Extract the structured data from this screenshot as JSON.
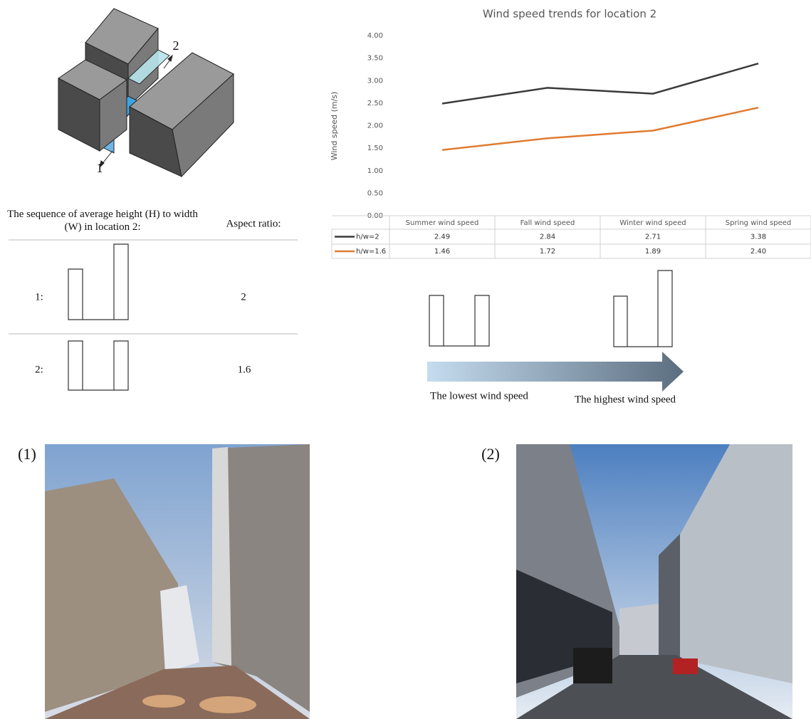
{
  "chart_data": {
    "type": "line",
    "title": "Wind speed trends for location 2",
    "y_label": "Wind speed (m/s)",
    "categories": [
      "Summer wind speed",
      "Fall wind speed",
      "Winter wind speed",
      "Spring wind speed"
    ],
    "series": [
      {
        "name": "h/w=2",
        "color": "#3a3a3a",
        "values": [
          2.49,
          2.84,
          2.71,
          3.38
        ]
      },
      {
        "name": "h/w=1.6",
        "color": "#e07b30",
        "values": [
          1.46,
          1.72,
          1.89,
          2.4
        ],
        "value_labels": [
          "1.46",
          "1.72",
          "1.89",
          "2.40"
        ]
      }
    ],
    "ylim": [
      0,
      4
    ],
    "yticks": [
      {
        "value": 0,
        "label": "0.00"
      },
      {
        "value": 0.5,
        "label": "0.50"
      },
      {
        "value": 1,
        "label": "1.00"
      },
      {
        "value": 1.5,
        "label": "1.50"
      },
      {
        "value": 2,
        "label": "2.00"
      },
      {
        "value": 2.5,
        "label": "2.50"
      },
      {
        "value": 3,
        "label": "3.00"
      },
      {
        "value": 3.5,
        "label": "3.50"
      },
      {
        "value": 4,
        "label": "4.00"
      }
    ]
  },
  "diagram": {
    "labels": [
      "1",
      "2"
    ]
  },
  "aspect_table": {
    "header": [
      "The sequence of average height (H) to width (W) in location 2:",
      "Aspect ratio:"
    ],
    "rows": [
      [
        "1:",
        "2"
      ],
      [
        "2:",
        "1.6"
      ]
    ]
  },
  "trend_arrow": {
    "low": "The lowest wind speed",
    "high": "The highest wind speed"
  },
  "photos": {
    "labels": [
      "(1)",
      "(2)"
    ]
  }
}
